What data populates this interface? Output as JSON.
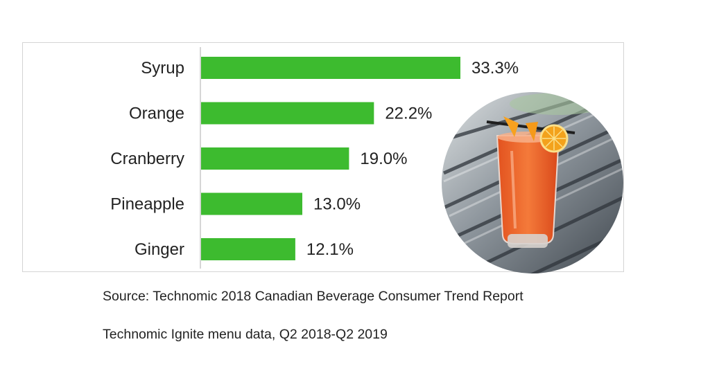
{
  "chart_data": {
    "type": "bar",
    "orientation": "horizontal",
    "categories": [
      "Syrup",
      "Orange",
      "Cranberry",
      "Pineapple",
      "Ginger"
    ],
    "values": [
      33.3,
      22.2,
      19.0,
      13.0,
      12.1
    ],
    "value_labels": [
      "33.3%",
      "22.2%",
      "19.0%",
      "13.0%",
      "12.1%"
    ],
    "unit": "%",
    "xlim": [
      0,
      33.3
    ],
    "grid": false,
    "bar_color": "#3dbb2f",
    "title": ""
  },
  "sources": [
    "Source: Technomic 2018 Canadian Beverage Consumer Trend Report",
    "Technomic Ignite menu data, Q2 2018-Q2 2019"
  ],
  "photo": {
    "subject": "orange-cocktail-glass",
    "colors": {
      "drink": "#f26a2e",
      "garnish": "#f39a1e",
      "wood": "#5d6670"
    }
  }
}
